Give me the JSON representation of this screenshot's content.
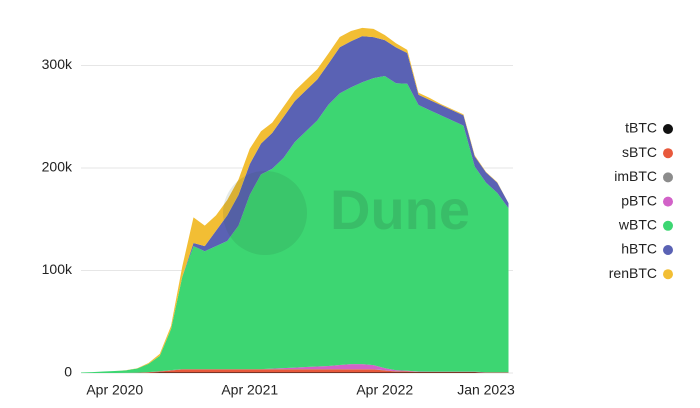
{
  "chart_data": {
    "type": "stacked-area",
    "watermark": "Dune",
    "x": [
      "Jan 2020",
      "Feb 2020",
      "Mar 2020",
      "Apr 2020",
      "May 2020",
      "Jun 2020",
      "Jul 2020",
      "Aug 2020",
      "Sep 2020",
      "Oct 2020",
      "Nov 2020",
      "Dec 2020",
      "Jan 2021",
      "Feb 2021",
      "Mar 2021",
      "Apr 2021",
      "May 2021",
      "Jun 2021",
      "Jul 2021",
      "Aug 2021",
      "Sep 2021",
      "Oct 2021",
      "Nov 2021",
      "Dec 2021",
      "Jan 2022",
      "Feb 2022",
      "Mar 2022",
      "Apr 2022",
      "May 2022",
      "Jun 2022",
      "Jul 2022",
      "Aug 2022",
      "Sep 2022",
      "Oct 2022",
      "Nov 2022",
      "Dec 2022",
      "Jan 2023",
      "Feb 2023",
      "Mar 2023"
    ],
    "xticks": [
      "Apr 2020",
      "Apr 2021",
      "Apr 2022",
      "Jan 2023"
    ],
    "ylim": [
      0,
      340000
    ],
    "yticks": [
      0,
      {
        "value": 100000,
        "label": "100k"
      },
      {
        "value": 200000,
        "label": "200k"
      },
      {
        "value": 300000,
        "label": "300k"
      }
    ],
    "grid": true,
    "legend": "right",
    "series": [
      {
        "name": "tBTC",
        "color": "#111111",
        "values": [
          0,
          0,
          0,
          0,
          0,
          100,
          300,
          500,
          500,
          500,
          500,
          500,
          500,
          500,
          500,
          500,
          500,
          500,
          500,
          500,
          500,
          500,
          500,
          500,
          500,
          500,
          500,
          500,
          500,
          500,
          500,
          500,
          500,
          500,
          500,
          500,
          300,
          300,
          300
        ]
      },
      {
        "name": "sBTC",
        "color": "#e8593c",
        "values": [
          0,
          0,
          0,
          0,
          100,
          200,
          500,
          1000,
          2000,
          3000,
          3000,
          3000,
          3000,
          3000,
          3000,
          3000,
          3000,
          3000,
          3000,
          3000,
          3000,
          3000,
          3000,
          3000,
          3000,
          3000,
          3000,
          2000,
          1000,
          1000,
          500,
          500,
          500,
          500,
          500,
          500,
          300,
          300,
          300
        ]
      },
      {
        "name": "imBTC",
        "color": "#8c8c8c",
        "values": [
          0,
          0,
          0,
          0,
          0,
          50,
          100,
          200,
          300,
          300,
          300,
          300,
          300,
          300,
          300,
          300,
          300,
          300,
          300,
          300,
          300,
          300,
          300,
          300,
          200,
          200,
          200,
          200,
          200,
          200,
          200,
          200,
          200,
          200,
          200,
          200,
          100,
          100,
          100
        ]
      },
      {
        "name": "pBTC",
        "color": "#d262c8",
        "values": [
          0,
          0,
          0,
          0,
          0,
          0,
          0,
          0,
          0,
          0,
          0,
          0,
          0,
          0,
          0,
          0,
          0,
          500,
          1000,
          1500,
          2000,
          2500,
          3000,
          4000,
          5000,
          5000,
          4000,
          2000,
          1000,
          500,
          200,
          100,
          100,
          100,
          100,
          100,
          0,
          0,
          0
        ]
      },
      {
        "name": "wBTC",
        "color": "#3dd672",
        "values": [
          500,
          800,
          1500,
          2000,
          2500,
          4000,
          8000,
          15000,
          40000,
          90000,
          120000,
          115000,
          120000,
          125000,
          140000,
          170000,
          190000,
          195000,
          205000,
          220000,
          230000,
          240000,
          255000,
          265000,
          270000,
          275000,
          280000,
          285000,
          280000,
          280000,
          260000,
          255000,
          250000,
          245000,
          240000,
          200000,
          185000,
          175000,
          160000
        ]
      },
      {
        "name": "hBTC",
        "color": "#5a62b4",
        "values": [
          0,
          0,
          0,
          0,
          0,
          0,
          0,
          0,
          0,
          0,
          3000,
          5000,
          15000,
          25000,
          30000,
          30000,
          30000,
          35000,
          40000,
          40000,
          40000,
          40000,
          40000,
          45000,
          45000,
          45000,
          40000,
          35000,
          35000,
          30000,
          10000,
          10000,
          10000,
          10000,
          10000,
          10000,
          10000,
          10000,
          5000
        ]
      },
      {
        "name": "renBTC",
        "color": "#f2be34",
        "values": [
          0,
          0,
          0,
          0,
          100,
          300,
          800,
          2000,
          3000,
          10000,
          25000,
          20000,
          15000,
          15000,
          15000,
          15000,
          12000,
          10000,
          10000,
          10000,
          10000,
          10000,
          10000,
          10000,
          10000,
          8000,
          8000,
          5000,
          4000,
          3000,
          2000,
          2000,
          1000,
          1000,
          1000,
          1000,
          500,
          500,
          0
        ]
      }
    ]
  }
}
